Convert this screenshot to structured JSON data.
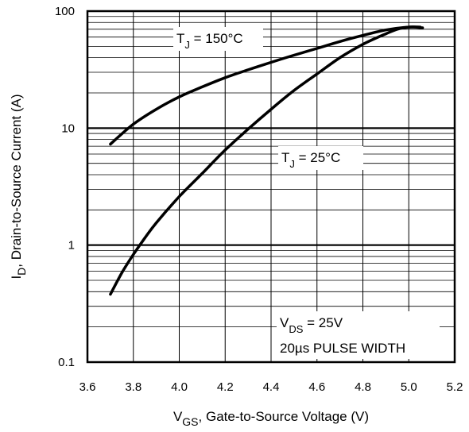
{
  "chart_data": {
    "type": "line",
    "x_scale": "linear",
    "y_scale": "log",
    "xlim": [
      3.6,
      5.2
    ],
    "ylim": [
      0.1,
      100
    ],
    "grid": true,
    "x_ticks": [
      "3.6",
      "3.8",
      "4.0",
      "4.2",
      "4.4",
      "4.6",
      "4.8",
      "5.0",
      "5.2"
    ],
    "y_ticks": [
      "0.1",
      "1",
      "10",
      "100"
    ],
    "ylabel": {
      "prefix": "I",
      "sub": "D",
      "rest": ", Drain-to-Source Current  (A)"
    },
    "xlabel": {
      "prefix": "V",
      "sub": "GS",
      "rest": ", Gate-to-Source Voltage (V)"
    },
    "series": [
      {
        "name": "T_J = 150°C",
        "label": {
          "prefix": "T",
          "sub": "J",
          "rest": " = 150°C"
        },
        "x": [
          3.7,
          3.8,
          3.9,
          4.0,
          4.1,
          4.2,
          4.3,
          4.4,
          4.5,
          4.6,
          4.7,
          4.8,
          4.9,
          5.0,
          5.06
        ],
        "y": [
          7.3,
          10.8,
          14.5,
          18.5,
          22.5,
          27,
          31.5,
          36.5,
          42,
          48,
          55,
          62,
          69,
          73,
          72
        ]
      },
      {
        "name": "T_J = 25°C",
        "label": {
          "prefix": "T",
          "sub": "J",
          "rest": " = 25°C"
        },
        "x": [
          3.7,
          3.75,
          3.8,
          3.85,
          3.9,
          4.0,
          4.1,
          4.2,
          4.3,
          4.4,
          4.5,
          4.6,
          4.7,
          4.8,
          4.9,
          4.95,
          5.0,
          5.05
        ],
        "y": [
          0.38,
          0.58,
          0.83,
          1.15,
          1.55,
          2.6,
          4.1,
          6.5,
          9.8,
          14.5,
          21,
          29,
          40,
          52,
          64,
          70,
          73,
          73
        ]
      }
    ],
    "annotations": [
      {
        "prefix": "V",
        "sub": "DS",
        "rest": " = 25V"
      },
      {
        "text": "20µs PULSE WIDTH"
      }
    ]
  }
}
